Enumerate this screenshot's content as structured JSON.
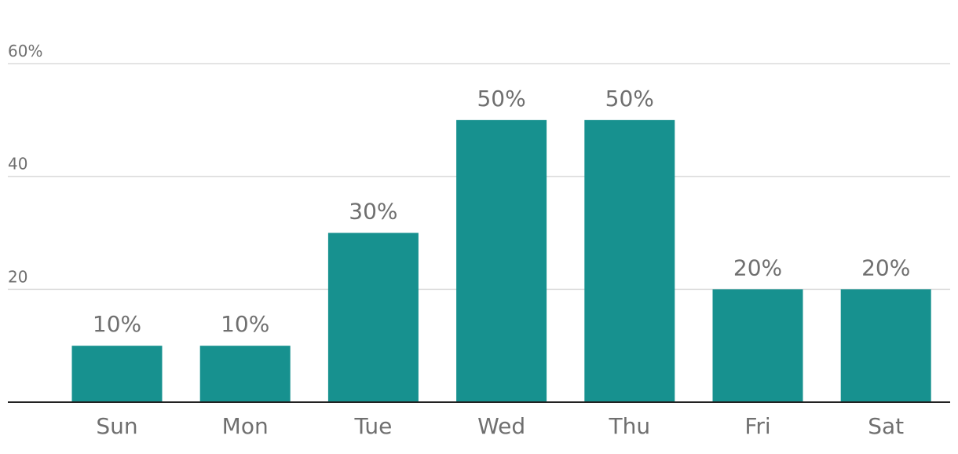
{
  "chart_data": {
    "type": "bar",
    "categories": [
      "Sun",
      "Mon",
      "Tue",
      "Wed",
      "Thu",
      "Fri",
      "Sat"
    ],
    "values": [
      10,
      10,
      30,
      50,
      50,
      20,
      20
    ],
    "value_labels": [
      "10%",
      "10%",
      "30%",
      "50%",
      "50%",
      "20%",
      "20%"
    ],
    "y_ticks": [
      {
        "value": 20,
        "label": "20"
      },
      {
        "value": 40,
        "label": "40"
      },
      {
        "value": 60,
        "label": "60%"
      }
    ],
    "ylim": [
      0,
      60
    ],
    "grid": true,
    "bar_color": "#17918f",
    "text_color": "#6f6f6f",
    "title": "",
    "xlabel": "",
    "ylabel": ""
  }
}
